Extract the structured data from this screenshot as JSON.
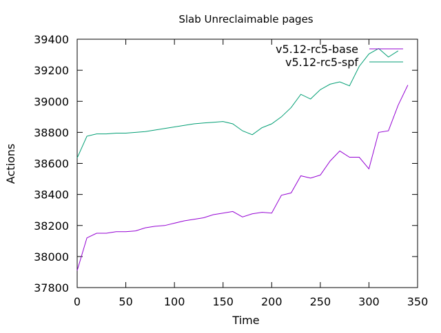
{
  "chart_data": {
    "type": "line",
    "title": "Slab Unreclaimable pages",
    "xlabel": "Time",
    "ylabel": "Actions",
    "xlim": [
      0,
      350
    ],
    "ylim": [
      37800,
      39400
    ],
    "xticks": [
      0,
      50,
      100,
      150,
      200,
      250,
      300,
      350
    ],
    "yticks": [
      37800,
      38000,
      38200,
      38400,
      38600,
      38800,
      39000,
      39200,
      39400
    ],
    "grid": false,
    "legend_position": "top-right",
    "series": [
      {
        "name": "v5.12-rc5-base",
        "color": "#9400d3",
        "x": [
          0,
          10,
          20,
          30,
          40,
          50,
          60,
          70,
          80,
          90,
          100,
          110,
          120,
          130,
          140,
          150,
          160,
          170,
          180,
          190,
          200,
          210,
          220,
          230,
          240,
          250,
          260,
          270,
          280,
          290,
          300,
          310,
          320,
          330,
          340
        ],
        "y": [
          37910,
          38120,
          38150,
          38150,
          38160,
          38160,
          38165,
          38185,
          38195,
          38200,
          38215,
          38230,
          38240,
          38250,
          38270,
          38280,
          38290,
          38255,
          38275,
          38285,
          38280,
          38395,
          38410,
          38520,
          38505,
          38525,
          38615,
          38680,
          38640,
          38640,
          38565,
          38800,
          38810,
          38975,
          39105
        ]
      },
      {
        "name": "v5.12-rc5-spf",
        "color": "#009e73",
        "x": [
          0,
          10,
          20,
          30,
          40,
          50,
          60,
          70,
          80,
          90,
          100,
          110,
          120,
          130,
          140,
          150,
          160,
          170,
          180,
          190,
          200,
          210,
          220,
          230,
          240,
          250,
          260,
          270,
          280,
          290,
          300,
          310,
          320,
          330
        ],
        "y": [
          38635,
          38775,
          38790,
          38790,
          38795,
          38795,
          38800,
          38805,
          38815,
          38825,
          38835,
          38845,
          38855,
          38860,
          38865,
          38870,
          38855,
          38810,
          38785,
          38830,
          38855,
          38900,
          38960,
          39045,
          39015,
          39075,
          39110,
          39125,
          39100,
          39225,
          39305,
          39340,
          39285,
          39325
        ]
      }
    ]
  }
}
